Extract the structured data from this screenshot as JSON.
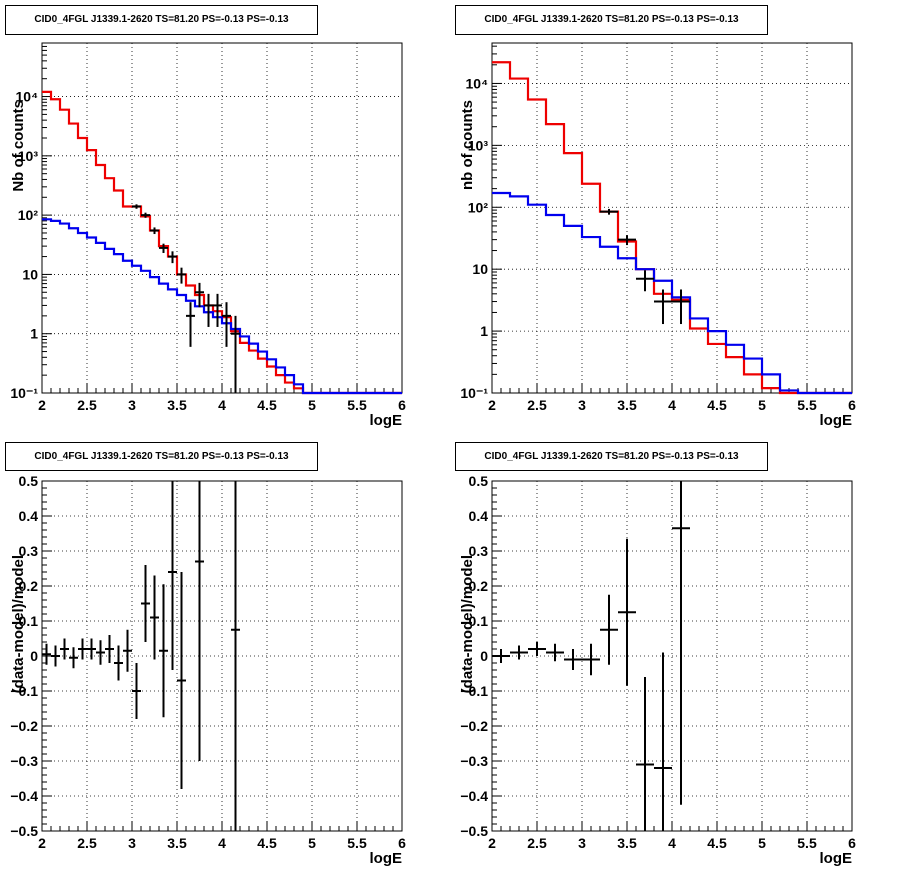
{
  "chart_data": [
    {
      "type": "line",
      "subtype": "histogram-with-errorbars",
      "title": "CID0_4FGL J1339.1-2620 TS=81.20 PS=-0.13 PS=-0.13",
      "xlabel": "logE",
      "ylabel": "Nb of counts",
      "xlim": [
        2,
        6
      ],
      "ylog": true,
      "ylim": [
        0.1,
        80000
      ],
      "x_ticks": [
        "2",
        "2.5",
        "3",
        "3.5",
        "4",
        "4.5",
        "5",
        "5.5",
        "6"
      ],
      "y_ticks": [
        "10⁻¹",
        "1",
        "10",
        "10²",
        "10³",
        "10⁴"
      ],
      "grid": true,
      "series": [
        {
          "color": "#ee0000",
          "kind": "step",
          "bin_width": 0.1,
          "x": [
            2.0,
            2.1,
            2.2,
            2.3,
            2.4,
            2.5,
            2.6,
            2.7,
            2.8,
            2.9,
            3.0,
            3.1,
            3.2,
            3.3,
            3.4,
            3.5,
            3.6,
            3.7,
            3.8,
            3.9,
            4.0,
            4.1,
            4.2,
            4.3,
            4.4,
            4.5,
            4.6,
            4.7,
            4.8,
            4.9,
            5.0,
            5.1,
            5.2,
            5.3,
            5.4,
            5.5,
            5.6,
            5.7,
            5.8,
            5.9
          ],
          "values": [
            12000,
            9000,
            6000,
            3500,
            2000,
            1250,
            700,
            420,
            260,
            140,
            140,
            95,
            55,
            30,
            20,
            10,
            6.5,
            4.5,
            3.0,
            2.4,
            1.9,
            1.1,
            0.7,
            0.52,
            0.38,
            0.28,
            0.2,
            0.15,
            0.12,
            0.1,
            0.1,
            0.1,
            0.1,
            0.1,
            0.1,
            0.1,
            0.1,
            0.1,
            0.1,
            0.1
          ]
        },
        {
          "color": "#0000ee",
          "kind": "step",
          "bin_width": 0.1,
          "x": [
            2.0,
            2.1,
            2.2,
            2.3,
            2.4,
            2.5,
            2.6,
            2.7,
            2.8,
            2.9,
            3.0,
            3.1,
            3.2,
            3.3,
            3.4,
            3.5,
            3.6,
            3.7,
            3.8,
            3.9,
            4.0,
            4.1,
            4.2,
            4.3,
            4.4,
            4.5,
            4.6,
            4.7,
            4.8,
            4.9,
            5.0,
            5.1,
            5.2,
            5.3,
            5.4,
            5.5,
            5.6,
            5.7,
            5.8,
            5.9
          ],
          "values": [
            85,
            80,
            72,
            60,
            50,
            42,
            34,
            27,
            22,
            17,
            14,
            11.5,
            9.0,
            7.0,
            5.6,
            4.5,
            3.6,
            2.9,
            2.3,
            1.9,
            1.5,
            1.2,
            0.9,
            0.68,
            0.5,
            0.37,
            0.27,
            0.2,
            0.14,
            0.1,
            0.1,
            0.1,
            0.1,
            0.1,
            0.1,
            0.1,
            0.1,
            0.1,
            0.1,
            0.1
          ]
        },
        {
          "color": "#000000",
          "kind": "points",
          "half_width": 0.05,
          "x": [
            3.05,
            3.15,
            3.25,
            3.35,
            3.45,
            3.55,
            3.65,
            3.75,
            3.85,
            3.95,
            4.05,
            4.15
          ],
          "values": [
            140,
            100,
            55,
            28,
            20,
            10,
            2,
            5,
            3,
            3,
            2,
            1
          ],
          "err_low": [
            12,
            10,
            7,
            5,
            4.5,
            3,
            1.4,
            2.2,
            1.7,
            1.7,
            1.4,
            1
          ],
          "err_high": [
            12,
            10,
            7,
            5,
            4.5,
            3,
            1.4,
            2.2,
            1.7,
            1.7,
            1.4,
            1
          ]
        }
      ]
    },
    {
      "type": "line",
      "subtype": "histogram-with-errorbars",
      "title": "CID0_4FGL J1339.1-2620 TS=81.20 PS=-0.13 PS=-0.13",
      "xlabel": "logE",
      "ylabel": "nb of counts",
      "xlim": [
        2,
        6
      ],
      "ylog": true,
      "ylim": [
        0.1,
        45000
      ],
      "x_ticks": [
        "2",
        "2.5",
        "3",
        "3.5",
        "4",
        "4.5",
        "5",
        "5.5",
        "6"
      ],
      "y_ticks": [
        "10⁻¹",
        "1",
        "10",
        "10²",
        "10³",
        "10⁴"
      ],
      "grid": true,
      "series": [
        {
          "color": "#ee0000",
          "kind": "step",
          "bin_width": 0.2,
          "x": [
            2.0,
            2.2,
            2.4,
            2.6,
            2.8,
            3.0,
            3.2,
            3.4,
            3.6,
            3.8,
            4.0,
            4.2,
            4.4,
            4.6,
            4.8,
            5.0,
            5.2,
            5.4,
            5.6,
            5.8
          ],
          "values": [
            22000,
            12000,
            5500,
            2200,
            750,
            240,
            85,
            28,
            10,
            4.0,
            3.2,
            1.1,
            0.62,
            0.38,
            0.2,
            0.12,
            0.1,
            0.1,
            0.1,
            0.1
          ]
        },
        {
          "color": "#0000ee",
          "kind": "step",
          "bin_width": 0.2,
          "x": [
            2.0,
            2.2,
            2.4,
            2.6,
            2.8,
            3.0,
            3.2,
            3.4,
            3.6,
            3.8,
            4.0,
            4.2,
            4.4,
            4.6,
            4.8,
            5.0,
            5.2,
            5.4,
            5.6,
            5.8
          ],
          "values": [
            170,
            150,
            110,
            75,
            50,
            33,
            23,
            15,
            10,
            6.5,
            3.5,
            1.6,
            1.0,
            0.6,
            0.36,
            0.2,
            0.11,
            0.1,
            0.1,
            0.1
          ]
        },
        {
          "color": "#000000",
          "kind": "points",
          "half_width": 0.1,
          "x": [
            3.3,
            3.5,
            3.7,
            3.9,
            4.1
          ],
          "values": [
            85,
            30,
            7,
            3,
            3
          ],
          "err_low": [
            9,
            5.5,
            2.6,
            1.7,
            1.7
          ],
          "err_high": [
            9,
            5.5,
            2.6,
            1.7,
            1.7
          ]
        }
      ]
    },
    {
      "type": "scatter",
      "subtype": "errorbars",
      "title": "CID0_4FGL J1339.1-2620 TS=81.20 PS=-0.13 PS=-0.13",
      "xlabel": "logE",
      "ylabel": "(data-model)/model",
      "xlim": [
        2,
        6
      ],
      "ylim": [
        -0.5,
        0.5
      ],
      "x_ticks": [
        "2",
        "2.5",
        "3",
        "3.5",
        "4",
        "4.5",
        "5",
        "5.5",
        "6"
      ],
      "y_ticks": [
        "−0.5",
        "−0.4",
        "−0.3",
        "−0.2",
        "−0.1",
        "0",
        "0.1",
        "0.2",
        "0.3",
        "0.4",
        "0.5"
      ],
      "grid": true,
      "series": [
        {
          "color": "#000000",
          "kind": "points",
          "half_width": 0.05,
          "x": [
            2.05,
            2.15,
            2.25,
            2.35,
            2.45,
            2.55,
            2.65,
            2.75,
            2.85,
            2.95,
            3.05,
            3.15,
            3.25,
            3.35,
            3.45,
            3.55,
            3.75,
            4.15
          ],
          "values": [
            0.005,
            0.0,
            0.02,
            -0.005,
            0.02,
            0.02,
            0.01,
            0.02,
            -0.02,
            0.015,
            -0.1,
            0.15,
            0.11,
            0.015,
            0.24,
            -0.07,
            0.27,
            0.075
          ],
          "err_low": [
            0.03,
            0.03,
            0.03,
            0.03,
            0.03,
            0.03,
            0.035,
            0.04,
            0.05,
            0.06,
            0.08,
            0.11,
            0.12,
            0.19,
            0.28,
            0.31,
            0.57,
            1.0
          ],
          "err_high": [
            0.03,
            0.03,
            0.03,
            0.03,
            0.03,
            0.03,
            0.035,
            0.04,
            0.05,
            0.06,
            0.08,
            0.11,
            0.12,
            0.19,
            0.28,
            0.31,
            0.57,
            1.0
          ]
        }
      ]
    },
    {
      "type": "scatter",
      "subtype": "errorbars",
      "title": "CID0_4FGL J1339.1-2620 TS=81.20 PS=-0.13 PS=-0.13",
      "xlabel": "logE",
      "ylabel": "(data-model)/model",
      "xlim": [
        2,
        6
      ],
      "ylim": [
        -0.5,
        0.5
      ],
      "x_ticks": [
        "2",
        "2.5",
        "3",
        "3.5",
        "4",
        "4.5",
        "5",
        "5.5",
        "6"
      ],
      "y_ticks": [
        "−0.5",
        "−0.4",
        "−0.3",
        "−0.2",
        "−0.1",
        "0",
        "0.1",
        "0.2",
        "0.3",
        "0.4",
        "0.5"
      ],
      "grid": true,
      "series": [
        {
          "color": "#000000",
          "kind": "points",
          "half_width": 0.1,
          "x": [
            2.1,
            2.3,
            2.5,
            2.7,
            2.9,
            3.1,
            3.3,
            3.5,
            3.7,
            3.9,
            4.1
          ],
          "values": [
            0.0,
            0.01,
            0.02,
            0.01,
            -0.01,
            -0.01,
            0.075,
            0.125,
            -0.31,
            -0.32,
            0.365
          ],
          "err_low": [
            0.02,
            0.02,
            0.02,
            0.025,
            0.03,
            0.045,
            0.1,
            0.21,
            0.25,
            0.33,
            0.79
          ],
          "err_high": [
            0.02,
            0.02,
            0.02,
            0.025,
            0.03,
            0.045,
            0.1,
            0.21,
            0.25,
            0.33,
            0.79
          ]
        }
      ]
    }
  ]
}
